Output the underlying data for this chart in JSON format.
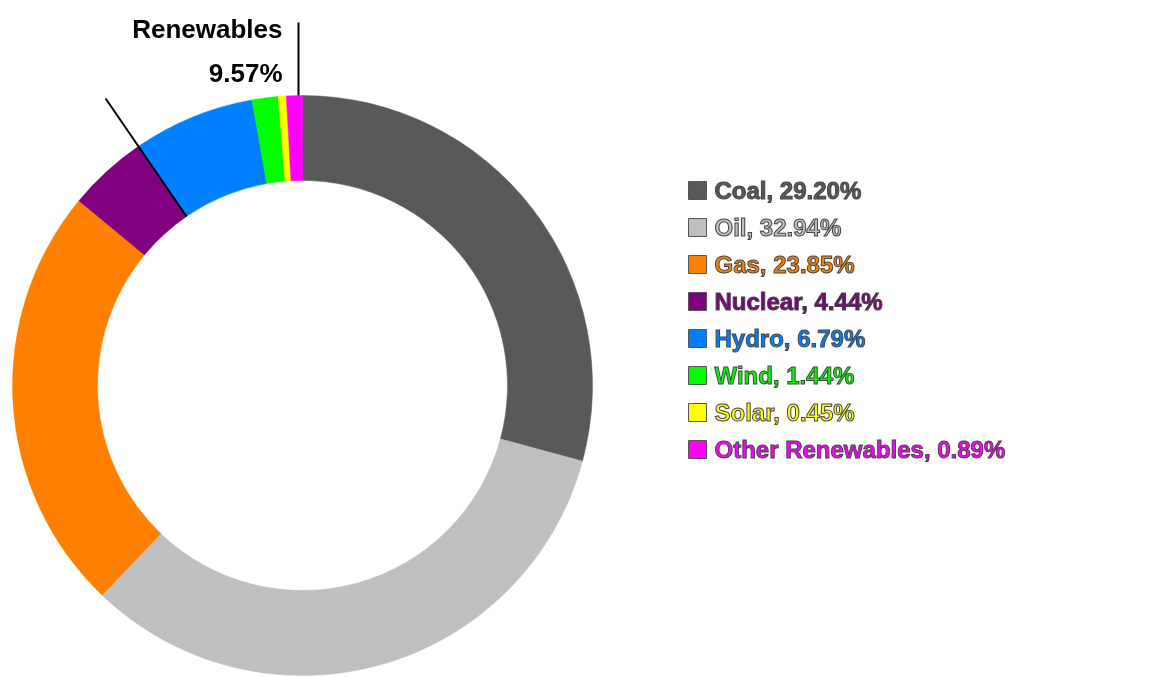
{
  "chart_data": {
    "type": "donut",
    "categories": [
      "Coal",
      "Oil",
      "Gas",
      "Nuclear",
      "Hydro",
      "Wind",
      "Solar",
      "Other Renewables"
    ],
    "values": [
      29.2,
      32.94,
      23.85,
      4.44,
      6.79,
      1.44,
      0.45,
      0.89
    ],
    "value_labels": [
      "29.20%",
      "32.94%",
      "23.85%",
      "4.44%",
      "6.79%",
      "1.44%",
      "0.45%",
      "0.89%"
    ],
    "colors": [
      "#595959",
      "#bfbfbf",
      "#ff8000",
      "#800080",
      "#0080ff",
      "#00ff00",
      "#ffff00",
      "#ff00ff"
    ],
    "legend": "right",
    "annotations": [
      "Renewables\n9.57%"
    ]
  }
}
